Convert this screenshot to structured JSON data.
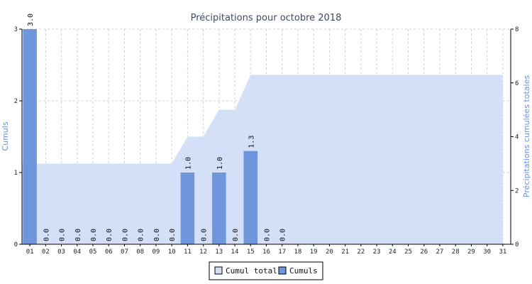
{
  "chart_data": {
    "type": "bar",
    "title": "Précipitations pour octobre 2018",
    "ylabel": "Cumuls",
    "y2label": "Précipitations cumulées totales",
    "ylim": [
      0,
      3
    ],
    "y2lim": [
      0,
      8
    ],
    "yticks": [
      "0",
      "1",
      "2",
      "3"
    ],
    "y2ticks": [
      "0",
      "2",
      "4",
      "6",
      "8"
    ],
    "grid": true,
    "legend_position": "bottom",
    "categories": [
      "01",
      "02",
      "03",
      "04",
      "05",
      "06",
      "07",
      "08",
      "09",
      "10",
      "11",
      "12",
      "13",
      "14",
      "15",
      "16",
      "17",
      "18",
      "19",
      "20",
      "21",
      "22",
      "23",
      "24",
      "25",
      "26",
      "27",
      "28",
      "29",
      "30",
      "31"
    ],
    "series": [
      {
        "name": "Cumuls",
        "type": "bar",
        "axis": "left",
        "color": "#6f96dc",
        "values": [
          3.0,
          0.0,
          0.0,
          0.0,
          0.0,
          0.0,
          0.0,
          0.0,
          0.0,
          0.0,
          1.0,
          0.0,
          1.0,
          0.0,
          1.3,
          0.0,
          0.0,
          null,
          null,
          null,
          null,
          null,
          null,
          null,
          null,
          null,
          null,
          null,
          null,
          null,
          null
        ],
        "labels": [
          "3.0",
          "0.0",
          "0.0",
          "0.0",
          "0.0",
          "0.0",
          "0.0",
          "0.0",
          "0.0",
          "0.0",
          "1.0",
          "0.0",
          "1.0",
          "0.0",
          "1.3",
          "0.0",
          "0.0",
          "",
          "",
          "",
          "",
          "",
          "",
          "",
          "",
          "",
          "",
          "",
          "",
          "",
          ""
        ]
      },
      {
        "name": "Cumul total",
        "type": "area",
        "axis": "right",
        "color": "#d3e0f8",
        "values": [
          3.0,
          3.0,
          3.0,
          3.0,
          3.0,
          3.0,
          3.0,
          3.0,
          3.0,
          3.0,
          4.0,
          4.0,
          5.0,
          5.0,
          6.3,
          6.3,
          6.3,
          6.3,
          6.3,
          6.3,
          6.3,
          6.3,
          6.3,
          6.3,
          6.3,
          6.3,
          6.3,
          6.3,
          6.3,
          6.3,
          6.3
        ]
      }
    ]
  },
  "legend": {
    "items": [
      {
        "label": "Cumul total",
        "color": "#d3e0f8"
      },
      {
        "label": "Cumuls",
        "color": "#6f96dc"
      }
    ]
  }
}
